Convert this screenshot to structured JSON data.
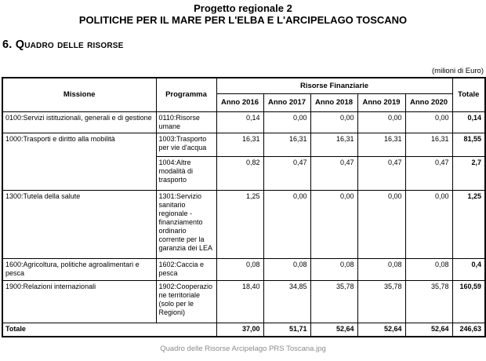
{
  "header": {
    "title": "Progetto regionale 2",
    "subtitle": "POLITICHE PER IL MARE PER L'ELBA E L'ARCIPELAGO TOSCANO",
    "section_heading": "6. Quadro delle risorse",
    "unit_note": "(milioni di Euro)"
  },
  "table": {
    "columns": {
      "missione": "Missione",
      "programma": "Programma",
      "group": "Risorse Finanziarie",
      "years": [
        "Anno 2016",
        "Anno 2017",
        "Anno 2018",
        "Anno 2019",
        "Anno 2020"
      ],
      "total": "Totale"
    },
    "rows": [
      {
        "missione": "0100:Servizi istituzionali,  generali e di gestione",
        "missione_rowspan": 1,
        "programma": "0110:Risorse umane",
        "values": [
          "0,14",
          "0,00",
          "0,00",
          "0,00",
          "0,00"
        ],
        "total": "0,14"
      },
      {
        "missione": "1000:Trasporti e diritto alla mobilità",
        "missione_rowspan": 2,
        "programma": "1003:Trasporto per vie d'acqua",
        "values": [
          "16,31",
          "16,31",
          "16,31",
          "16,31",
          "16,31"
        ],
        "total": "81,55"
      },
      {
        "missione": null,
        "programma": "1004:Altre modalità di trasporto",
        "values": [
          "0,82",
          "0,47",
          "0,47",
          "0,47",
          "0,47"
        ],
        "total": "2,7"
      },
      {
        "missione": "1300:Tutela della salute",
        "missione_rowspan": 1,
        "programma": "1301:Servizio sanitario regionale - finanziamento ordinario corrente per la garanzia dei LEA",
        "values": [
          "1,25",
          "0,00",
          "0,00",
          "0,00",
          "0,00"
        ],
        "total": "1,25"
      },
      {
        "missione": "1600:Agricoltura, politiche agroalimentari e pesca",
        "missione_rowspan": 1,
        "programma": "1602:Caccia e pesca",
        "values": [
          "0,08",
          "0,08",
          "0,08",
          "0,08",
          "0,08"
        ],
        "total": "0,4"
      },
      {
        "missione": "1900:Relazioni internazionali",
        "missione_rowspan": 1,
        "programma": "1902:Cooperazione territoriale (solo per le Regioni)",
        "values": [
          "18,40",
          "34,85",
          "35,78",
          "35,78",
          "35,78"
        ],
        "total": "160,59"
      }
    ],
    "total_row": {
      "label": "Totale",
      "values": [
        "37,00",
        "51,71",
        "52,64",
        "52,64",
        "52,64"
      ],
      "total": "246,63"
    }
  },
  "footer": {
    "caption": "Quadro delle Risorse Arcipelago PRS Toscana.jpg"
  }
}
